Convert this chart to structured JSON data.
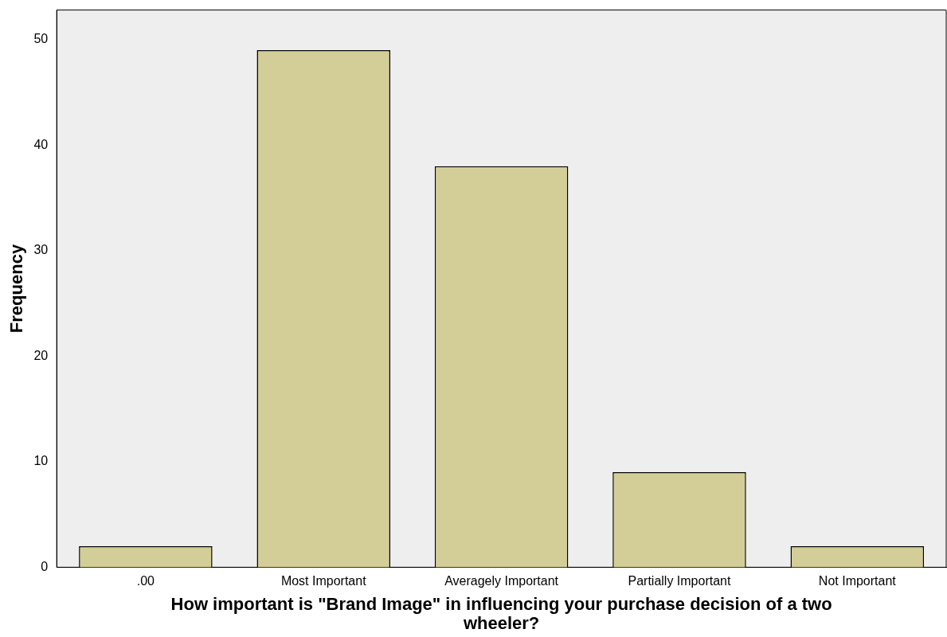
{
  "chart_data": {
    "type": "bar",
    "categories": [
      ".00",
      "Most Important",
      "Averagely Important",
      "Partially Important",
      "Not Important"
    ],
    "values": [
      2,
      49,
      38,
      9,
      2
    ],
    "color": "#d3ce97",
    "xlabel": "How important is \"Brand Image\" in influencing your purchase decision of a two wheeler?",
    "ylabel": "Frequency",
    "ylim": [
      0,
      52.8
    ],
    "yticks": [
      0,
      10,
      20,
      30,
      40,
      50
    ],
    "grid": false,
    "legend": false
  }
}
